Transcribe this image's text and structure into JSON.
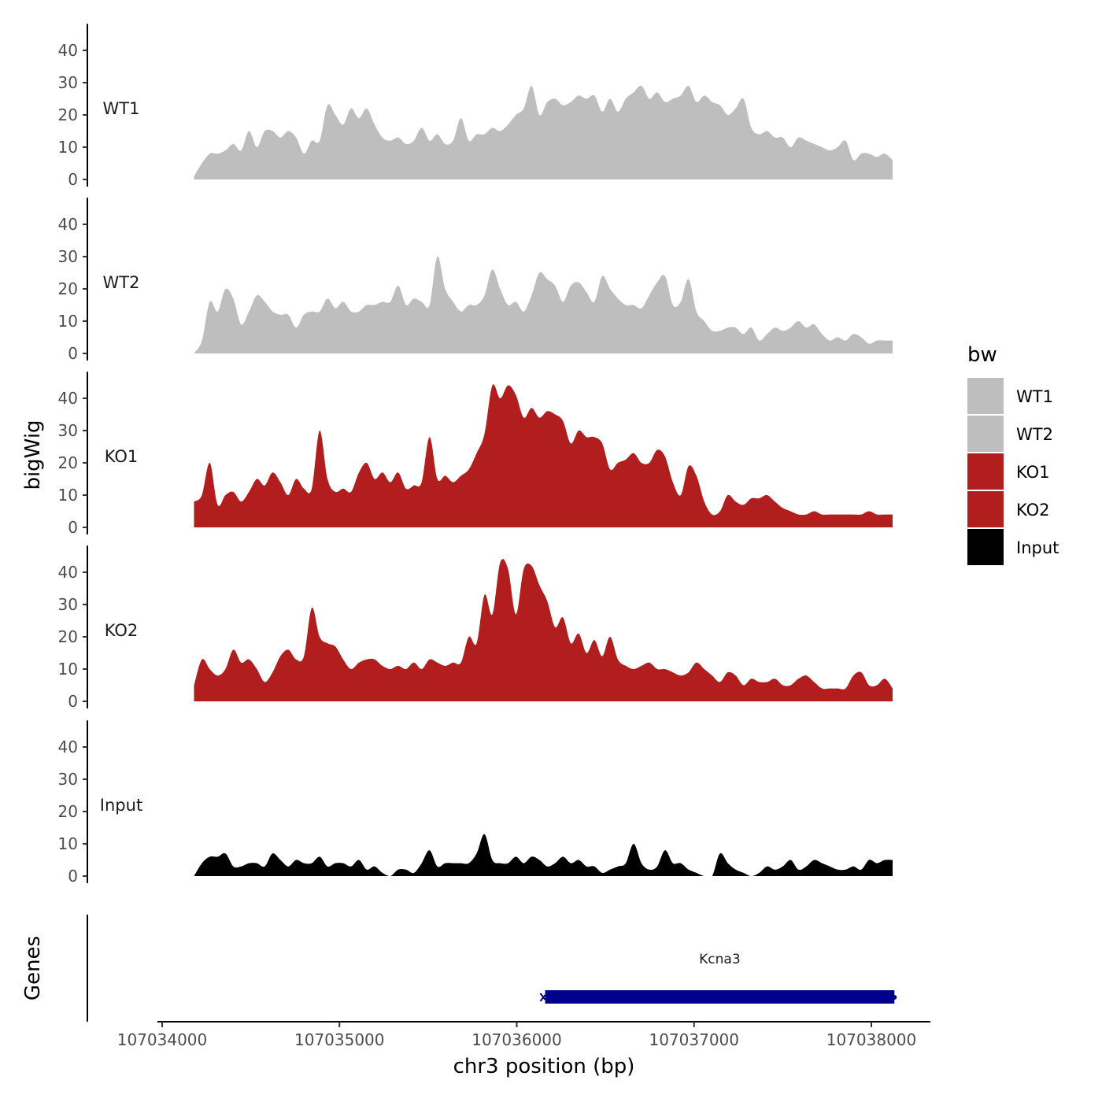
{
  "chart_data": {
    "type": "area",
    "chromosome": "chr3",
    "xlabel": "chr3 position (bp)",
    "ylabel": "bigWig",
    "xlim": [
      107033970,
      107038320
    ],
    "x_range_data": [
      107034180,
      107038120
    ],
    "ylim": [
      0,
      47
    ],
    "yticks": [
      0,
      10,
      20,
      30,
      40
    ],
    "xticks": [
      107034000,
      107035000,
      107036000,
      107037000,
      107038000
    ],
    "xtick_labels": [
      "107034000",
      "107035000",
      "107036000",
      "107037000",
      "107038000"
    ],
    "legend": {
      "title": "bw",
      "position": "right",
      "entries": [
        {
          "name": "WT1",
          "color": "#bebebe"
        },
        {
          "name": "WT2",
          "color": "#bebebe"
        },
        {
          "name": "KO1",
          "color": "#b21e1e"
        },
        {
          "name": "KO2",
          "color": "#b21e1e"
        },
        {
          "name": "Input",
          "color": "#000000"
        }
      ]
    },
    "series": [
      {
        "name": "WT1",
        "color": "#bebebe",
        "values": [
          1,
          5,
          8,
          8,
          9,
          11,
          9,
          15,
          10,
          15,
          15,
          13,
          15,
          13,
          8,
          12,
          12,
          23,
          20,
          17,
          22,
          19,
          22,
          17,
          13,
          12,
          13,
          11,
          12,
          16,
          12,
          14,
          11,
          12,
          19,
          12,
          14,
          14,
          16,
          15,
          17,
          20,
          22,
          29,
          20,
          24,
          25,
          23,
          24,
          26,
          25,
          26,
          21,
          25,
          21,
          25,
          27,
          29,
          25,
          27,
          24,
          25,
          26,
          29,
          24,
          26,
          24,
          23,
          20,
          22,
          25,
          16,
          14,
          15,
          13,
          13,
          10,
          13,
          12,
          11,
          10,
          9,
          10,
          12,
          6,
          8,
          8,
          7,
          8,
          6
        ]
      },
      {
        "name": "WT2",
        "color": "#bebebe",
        "values": [
          0,
          4,
          16,
          13,
          20,
          17,
          9,
          13,
          18,
          16,
          13,
          12,
          12,
          8,
          12,
          13,
          13,
          17,
          14,
          16,
          13,
          13,
          15,
          15,
          16,
          16,
          21,
          15,
          17,
          16,
          15,
          30,
          20,
          16,
          13,
          15,
          15,
          18,
          26,
          20,
          15,
          16,
          13,
          18,
          25,
          23,
          21,
          16,
          21,
          22,
          19,
          16,
          24,
          20,
          17,
          15,
          15,
          14,
          18,
          22,
          24,
          15,
          16,
          23,
          13,
          10,
          7,
          7,
          8,
          8,
          6,
          8,
          4,
          6,
          8,
          7,
          8,
          10,
          8,
          9,
          6,
          4,
          5,
          4,
          6,
          5,
          3,
          4,
          4,
          4
        ]
      },
      {
        "name": "KO1",
        "color": "#b21e1e",
        "values": [
          8,
          10,
          20,
          7,
          10,
          11,
          8,
          11,
          15,
          13,
          17,
          14,
          10,
          15,
          12,
          12,
          30,
          15,
          11,
          12,
          11,
          17,
          20,
          15,
          17,
          14,
          17,
          12,
          13,
          14,
          28,
          15,
          16,
          14,
          16,
          18,
          23,
          29,
          44,
          40,
          44,
          41,
          34,
          37,
          34,
          36,
          35,
          33,
          26,
          30,
          28,
          28,
          26,
          18,
          20,
          21,
          23,
          20,
          20,
          24,
          22,
          14,
          10,
          19,
          16,
          8,
          4,
          5,
          10,
          8,
          7,
          9,
          9,
          10,
          8,
          6,
          5,
          4,
          4,
          5,
          4,
          4,
          4,
          4,
          4,
          4,
          5,
          4,
          4,
          4
        ]
      },
      {
        "name": "KO2",
        "color": "#b21e1e",
        "values": [
          5,
          13,
          10,
          8,
          10,
          16,
          12,
          13,
          10,
          6,
          9,
          14,
          16,
          13,
          14,
          29,
          20,
          18,
          17,
          13,
          10,
          12,
          13,
          13,
          11,
          10,
          11,
          10,
          12,
          10,
          13,
          12,
          11,
          12,
          12,
          20,
          18,
          33,
          27,
          43,
          41,
          27,
          41,
          42,
          36,
          31,
          23,
          26,
          18,
          21,
          15,
          19,
          14,
          20,
          13,
          11,
          10,
          11,
          12,
          10,
          10,
          9,
          8,
          9,
          12,
          10,
          8,
          6,
          9,
          8,
          5,
          7,
          6,
          6,
          7,
          5,
          5,
          7,
          8,
          6,
          4,
          4,
          4,
          4,
          8,
          9,
          5,
          5,
          7,
          4
        ]
      },
      {
        "name": "Input",
        "color": "#000000",
        "values": [
          0,
          4,
          6,
          6,
          7,
          3,
          3,
          4,
          4,
          3,
          7,
          5,
          3,
          5,
          4,
          4,
          6,
          3,
          4,
          4,
          3,
          5,
          2,
          3,
          1,
          0,
          2,
          2,
          1,
          4,
          8,
          3,
          4,
          4,
          4,
          4,
          7,
          13,
          5,
          4,
          4,
          6,
          4,
          6,
          5,
          3,
          4,
          6,
          4,
          5,
          3,
          3,
          1,
          2,
          3,
          4,
          10,
          4,
          2,
          3,
          8,
          4,
          4,
          2,
          1,
          0,
          0,
          7,
          4,
          2,
          1,
          0,
          1,
          3,
          2,
          3,
          5,
          2,
          3,
          5,
          4,
          3,
          2,
          2,
          3,
          2,
          5,
          4,
          5,
          5
        ]
      }
    ],
    "genes": [
      {
        "name": "Kcna3",
        "start": 107036160,
        "end": 107038130,
        "strand": "+",
        "color": "#00008b"
      }
    ],
    "gene_track_label": "Genes"
  }
}
